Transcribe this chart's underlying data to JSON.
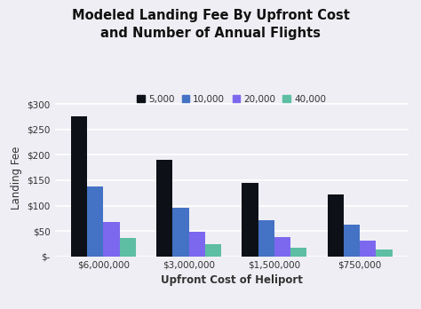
{
  "title": "Modeled Landing Fee By Upfront Cost\nand Number of Annual Flights",
  "xlabel": "Upfront Cost of Heliport",
  "ylabel": "Landing Fee",
  "categories": [
    "$6,000,000",
    "$3,000,000",
    "$1,500,000",
    "$750,000"
  ],
  "series": [
    {
      "label": "5,000",
      "color": "#0d1117",
      "values": [
        275,
        190,
        145,
        122
      ]
    },
    {
      "label": "10,000",
      "color": "#4472C4",
      "values": [
        137,
        95,
        72,
        62
      ]
    },
    {
      "label": "20,000",
      "color": "#7B68EE",
      "values": [
        68,
        48,
        38,
        32
      ]
    },
    {
      "label": "40,000",
      "color": "#5DBEA3",
      "values": [
        36,
        25,
        18,
        14
      ]
    }
  ],
  "ylim": [
    0,
    310
  ],
  "yticks": [
    0,
    50,
    100,
    150,
    200,
    250,
    300
  ],
  "ytick_labels": [
    "$-",
    "$50",
    "$100",
    "$150",
    "$200",
    "$250",
    "$300"
  ],
  "background_color": "#EEEEF4",
  "grid_color": "#FFFFFF",
  "title_fontsize": 10.5,
  "axis_label_fontsize": 8.5,
  "tick_fontsize": 7.5,
  "legend_fontsize": 7.5,
  "bar_width": 0.19
}
